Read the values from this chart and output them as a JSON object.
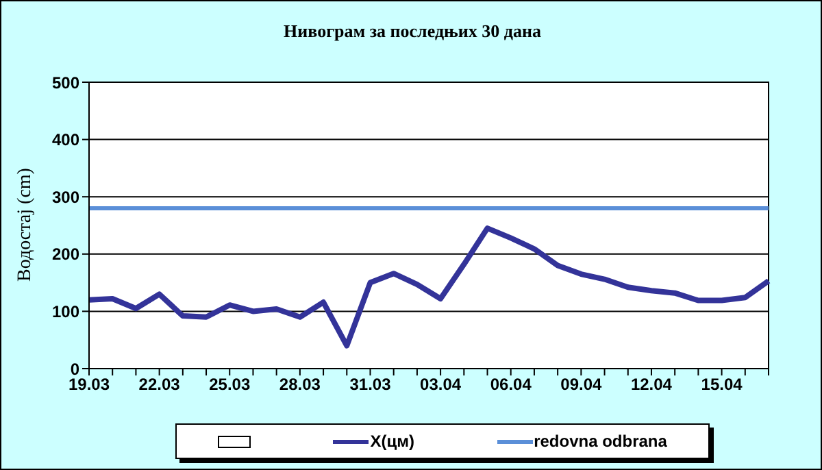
{
  "chart_data": {
    "type": "line",
    "title": "Нивограм за последњих 30 дана",
    "ylabel": "Водостај (cm)",
    "categories": [
      "19.03",
      null,
      null,
      "22.03",
      null,
      null,
      "25.03",
      null,
      null,
      "28.03",
      null,
      null,
      "31.03",
      null,
      null,
      "03.04",
      null,
      null,
      "06.04",
      null,
      null,
      "09.04",
      null,
      null,
      "12.04",
      null,
      null,
      "15.04",
      null,
      null
    ],
    "series": [
      {
        "name": "X(цм)",
        "color": "#333399",
        "values": [
          120,
          122,
          105,
          130,
          92,
          90,
          111,
          100,
          104,
          90,
          116,
          40,
          150,
          166,
          147,
          122,
          182,
          245,
          228,
          209,
          180,
          165,
          156,
          142,
          136,
          132,
          119,
          119,
          124,
          153
        ]
      }
    ],
    "ref_lines": [
      {
        "axis": "y",
        "value": 280,
        "label": "redovna odbrana",
        "color": "#5b8fd8"
      }
    ],
    "ylim": [
      0,
      500
    ],
    "yticks": [
      0,
      100,
      200,
      300,
      400,
      500
    ],
    "grid": "y",
    "legend": "bottom",
    "marker": "none",
    "line_style": "solid"
  }
}
